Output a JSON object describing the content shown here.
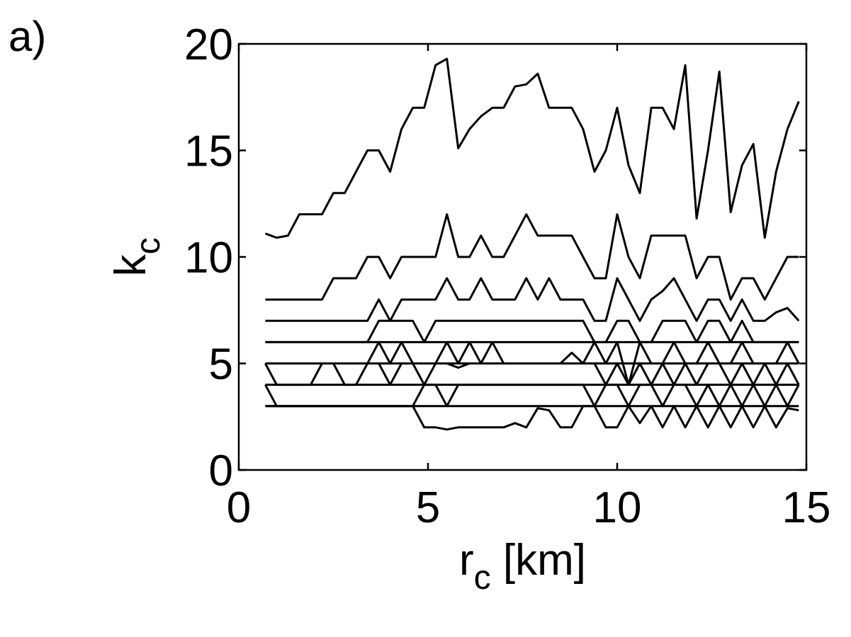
{
  "panel_label": "a)",
  "chart_data": {
    "type": "line",
    "xlabel": {
      "main": "r",
      "sub": "c",
      "unit": " [km]"
    },
    "ylabel": {
      "main": "k",
      "sub": "c"
    },
    "xlim": [
      0,
      15
    ],
    "ylim": [
      0,
      20
    ],
    "xticks": [
      0,
      5,
      10,
      15
    ],
    "yticks": [
      0,
      5,
      10,
      15,
      20
    ],
    "grid": false,
    "legend": "none",
    "line_color": "#000000",
    "series": [
      {
        "x": [
          0.7,
          1.0,
          1.3,
          1.6,
          1.9,
          2.2,
          2.5,
          2.8,
          3.1,
          3.4,
          3.7,
          4.0,
          4.3,
          4.6,
          4.9,
          5.2,
          5.5,
          5.8,
          6.1,
          6.4,
          6.7,
          7.0,
          7.3,
          7.6,
          7.9,
          8.2,
          8.5,
          8.8,
          9.1,
          9.4,
          9.7,
          10.0,
          10.3,
          10.6,
          10.9,
          11.2,
          11.5,
          11.8,
          12.1,
          12.4,
          12.7,
          13.0,
          13.3,
          13.6,
          13.9,
          14.2,
          14.5,
          14.8
        ],
        "values": [
          11.1,
          10.9,
          11,
          12,
          12,
          12,
          13,
          13,
          14,
          15,
          15,
          14,
          16,
          17,
          17,
          19,
          19.3,
          15.1,
          16,
          16.6,
          17,
          17,
          18,
          18.1,
          18.6,
          17,
          17,
          17,
          16,
          14,
          15,
          17,
          14.3,
          13,
          17,
          17,
          16,
          19,
          11.8,
          15,
          18.7,
          12.1,
          14.3,
          15.3,
          10.9,
          14,
          16,
          17.3
        ]
      },
      {
        "x": [
          0.7,
          1.3,
          1.9,
          2.2,
          2.5,
          2.8,
          3.1,
          3.4,
          3.7,
          4.0,
          4.3,
          4.6,
          4.9,
          5.2,
          5.5,
          5.8,
          6.1,
          6.4,
          6.7,
          7.0,
          7.3,
          7.6,
          7.9,
          8.2,
          8.5,
          8.8,
          9.1,
          9.4,
          9.7,
          10.0,
          10.3,
          10.6,
          10.9,
          11.2,
          11.5,
          11.8,
          12.1,
          12.4,
          12.7,
          13.0,
          13.3,
          13.6,
          13.9,
          14.2,
          14.5,
          14.8
        ],
        "values": [
          8,
          8,
          8,
          8,
          9,
          9,
          9,
          10,
          10,
          9,
          10,
          10,
          10,
          10,
          12,
          10,
          10,
          11,
          10,
          10,
          11,
          12,
          11,
          11,
          11,
          11,
          10,
          9,
          9,
          12,
          10,
          9,
          11,
          11,
          11,
          11,
          9,
          10,
          10,
          8,
          9,
          9,
          8,
          9,
          10,
          10
        ]
      },
      {
        "x": [
          0.7,
          3.4,
          3.7,
          4.0,
          4.3,
          4.6,
          4.9,
          5.2,
          5.5,
          5.8,
          6.1,
          6.4,
          6.7,
          7.0,
          7.3,
          7.6,
          7.9,
          8.2,
          8.5,
          8.8,
          9.1,
          9.4,
          9.7,
          10.0,
          10.3,
          10.6,
          10.9,
          11.2,
          11.5,
          11.8,
          12.1,
          12.4,
          12.7,
          13.0,
          13.3,
          13.6,
          13.9,
          14.2,
          14.5,
          14.8
        ],
        "values": [
          7,
          7,
          8,
          7,
          8,
          8,
          8,
          8,
          9,
          8,
          8,
          9,
          8,
          8,
          8,
          9,
          8,
          9,
          8,
          8,
          8,
          7,
          7,
          9,
          8,
          7,
          8,
          8.4,
          9,
          8,
          7,
          8,
          8,
          7,
          8,
          7,
          7,
          7.4,
          7.6,
          7
        ]
      },
      {
        "x": [
          0.7,
          3.4,
          3.7,
          4.0,
          4.3,
          4.6,
          4.9,
          5.2,
          5.5,
          5.8,
          6.1,
          6.4,
          6.7,
          7.0,
          7.3,
          7.6,
          7.9,
          8.2,
          8.5,
          8.8,
          9.1,
          9.4,
          9.7,
          10.0,
          10.3,
          10.6,
          10.9,
          11.2,
          11.5,
          11.8,
          12.1,
          12.4,
          12.7,
          13.0,
          13.3,
          13.6,
          13.9,
          14.2,
          14.5,
          14.8
        ],
        "values": [
          6,
          6,
          7,
          7,
          7,
          7,
          6,
          7,
          7,
          7,
          7,
          7,
          7,
          7,
          7,
          7,
          7,
          7,
          7,
          7,
          7,
          6,
          6,
          7,
          7,
          6,
          6,
          7,
          7,
          7,
          6,
          7,
          7,
          6,
          7,
          6,
          6,
          6,
          6,
          6
        ]
      },
      {
        "x": [
          0.7,
          14.8
        ],
        "values": [
          6,
          6
        ]
      },
      {
        "x": [
          0.7,
          3.4,
          3.7,
          4.0,
          4.3,
          4.6,
          4.9,
          5.2,
          5.5,
          5.8,
          6.1,
          6.4,
          6.7,
          7.0,
          7.3,
          7.6,
          7.9,
          8.2,
          8.5,
          8.8,
          9.1,
          9.4,
          9.7,
          10.0,
          10.3,
          10.6,
          10.9,
          11.2,
          11.5,
          11.8,
          12.1,
          12.4,
          12.7,
          13.0,
          13.3,
          13.6,
          13.9,
          14.2,
          14.5,
          14.8
        ],
        "values": [
          5,
          5,
          6,
          5,
          6,
          5,
          5,
          5,
          6,
          5,
          6,
          5,
          6,
          5,
          5,
          5,
          5,
          5,
          5,
          5.5,
          5,
          6,
          5,
          6,
          4,
          6,
          5,
          5,
          6,
          5,
          5,
          6,
          5,
          5,
          6,
          5,
          5,
          5,
          6,
          5
        ]
      },
      {
        "x": [
          0.7,
          14.8
        ],
        "values": [
          5,
          5
        ]
      },
      {
        "x": [
          0.7,
          1.0,
          1.9,
          2.2,
          2.5,
          2.8,
          3.1,
          3.4,
          3.7,
          4.0,
          4.3,
          4.6,
          4.9,
          5.2,
          5.5,
          5.8,
          6.1,
          6.4,
          6.7,
          7.0,
          7.3,
          7.6,
          7.9,
          8.2,
          8.5,
          8.8,
          9.1,
          9.4,
          9.7,
          10.0,
          10.3,
          10.6,
          10.9,
          11.2,
          11.5,
          11.8,
          12.1,
          12.4,
          12.7,
          13.0,
          13.3,
          13.6,
          13.9,
          14.2,
          14.5,
          14.8
        ],
        "values": [
          5,
          4,
          4,
          5,
          5,
          4,
          4,
          5,
          5,
          4,
          5,
          5,
          4,
          5,
          5,
          4.8,
          5,
          5,
          5,
          5,
          5,
          5,
          5,
          5,
          5,
          5,
          5,
          5,
          4,
          5,
          4,
          5,
          4,
          5,
          4,
          5,
          4,
          5,
          5,
          4,
          5,
          4,
          5,
          4,
          5,
          4
        ]
      },
      {
        "x": [
          0.7,
          14.8
        ],
        "values": [
          4,
          4
        ]
      },
      {
        "x": [
          0.7,
          1.0,
          4.6,
          4.9,
          5.2,
          5.5,
          5.8,
          9.1,
          9.4,
          9.7,
          10.0,
          10.3,
          10.6,
          10.9,
          11.2,
          11.5,
          11.8,
          12.1,
          12.4,
          12.7,
          13.0,
          13.3,
          13.6,
          13.9,
          14.2,
          14.5,
          14.8
        ],
        "values": [
          4,
          3,
          3,
          4,
          4,
          3,
          4,
          4,
          3,
          4,
          4,
          3,
          4,
          4,
          3,
          4,
          4,
          3,
          4,
          3,
          4,
          3,
          4,
          3,
          4,
          3,
          4
        ]
      },
      {
        "x": [
          0.7,
          14.8
        ],
        "values": [
          3,
          3
        ]
      },
      {
        "x": [
          0.7,
          4.6,
          4.9,
          5.2,
          5.5,
          5.8,
          6.1,
          6.4,
          6.7,
          7.0,
          7.3,
          7.6,
          7.9,
          8.2,
          8.5,
          8.8,
          9.1,
          9.4,
          9.7,
          10.0,
          10.3,
          10.6,
          10.9,
          11.2,
          11.5,
          11.8,
          12.1,
          12.4,
          12.7,
          13.0,
          13.3,
          13.6,
          13.9,
          14.2,
          14.5,
          14.8
        ],
        "values": [
          3,
          3,
          2,
          2,
          1.9,
          2,
          2,
          2,
          2,
          2,
          2.2,
          2,
          2.9,
          2.8,
          2,
          2,
          3,
          3,
          2,
          2,
          3,
          2.2,
          3,
          2,
          3,
          2,
          3,
          2,
          3,
          2,
          3,
          2,
          3,
          2,
          2.9,
          2.8
        ]
      }
    ]
  }
}
